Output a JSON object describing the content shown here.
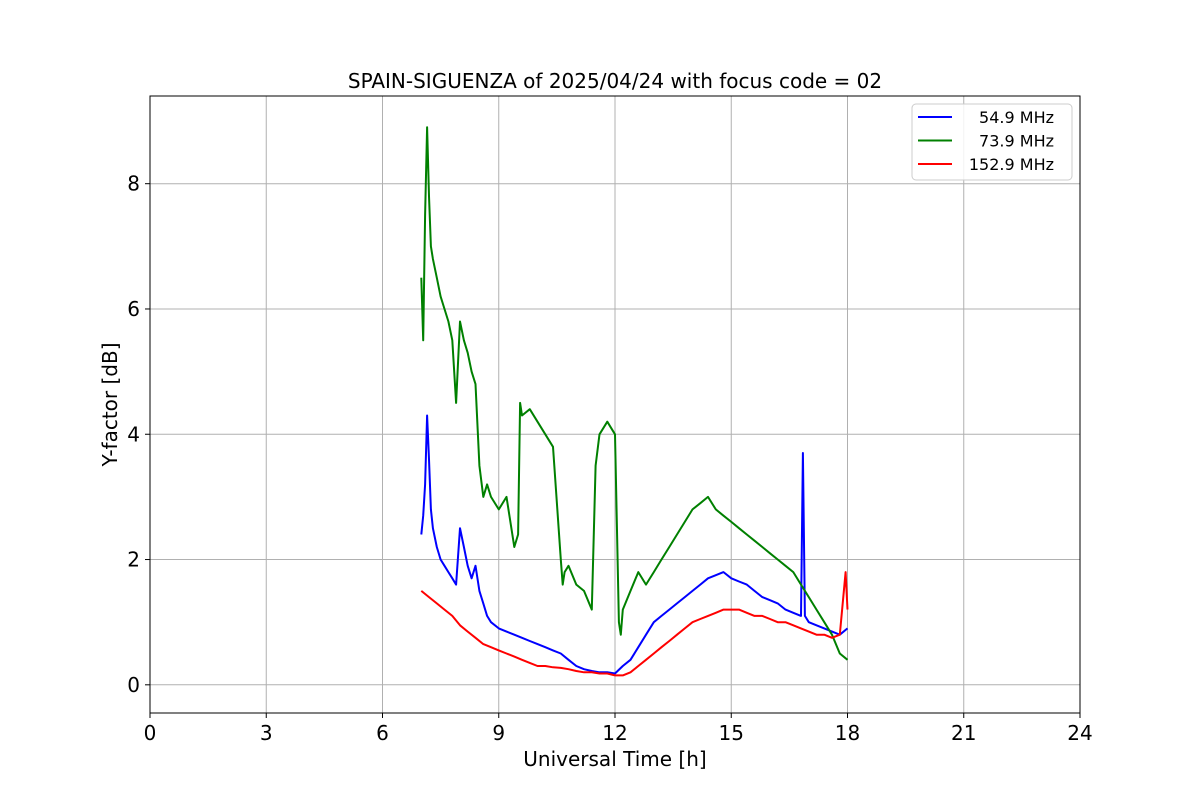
{
  "chart_data": {
    "type": "line",
    "title": "SPAIN-SIGUENZA of 2025/04/24 with focus code = 02",
    "xlabel": "Universal Time [h]",
    "ylabel": "Y-factor [dB]",
    "xlim": [
      0,
      24
    ],
    "ylim": [
      -0.45,
      9.4
    ],
    "xticks": [
      0,
      3,
      6,
      9,
      12,
      15,
      18,
      21,
      24
    ],
    "yticks": [
      0,
      2,
      4,
      6,
      8
    ],
    "grid": true,
    "legend_position": "top-right",
    "series": [
      {
        "name": "54.9 MHz",
        "color": "#0000ff",
        "x": [
          7.0,
          7.05,
          7.1,
          7.15,
          7.2,
          7.25,
          7.3,
          7.4,
          7.5,
          7.6,
          7.7,
          7.8,
          7.9,
          8.0,
          8.1,
          8.2,
          8.3,
          8.4,
          8.5,
          8.6,
          8.7,
          8.8,
          9.0,
          9.2,
          9.4,
          9.6,
          9.8,
          10.0,
          10.2,
          10.4,
          10.6,
          10.8,
          11.0,
          11.2,
          11.4,
          11.6,
          11.8,
          12.0,
          12.2,
          12.4,
          12.6,
          12.8,
          13.0,
          13.2,
          13.4,
          13.6,
          13.8,
          14.0,
          14.2,
          14.4,
          14.6,
          14.8,
          15.0,
          15.2,
          15.4,
          15.6,
          15.8,
          16.0,
          16.2,
          16.4,
          16.6,
          16.8,
          16.85,
          16.9,
          17.0,
          17.2,
          17.4,
          17.6,
          17.8,
          18.0
        ],
        "y": [
          2.4,
          2.7,
          3.2,
          4.3,
          3.6,
          2.8,
          2.5,
          2.2,
          2.0,
          1.9,
          1.8,
          1.7,
          1.6,
          2.5,
          2.2,
          1.9,
          1.7,
          1.9,
          1.5,
          1.3,
          1.1,
          1.0,
          0.9,
          0.85,
          0.8,
          0.75,
          0.7,
          0.65,
          0.6,
          0.55,
          0.5,
          0.4,
          0.3,
          0.25,
          0.22,
          0.2,
          0.2,
          0.18,
          0.3,
          0.4,
          0.6,
          0.8,
          1.0,
          1.1,
          1.2,
          1.3,
          1.4,
          1.5,
          1.6,
          1.7,
          1.75,
          1.8,
          1.7,
          1.65,
          1.6,
          1.5,
          1.4,
          1.35,
          1.3,
          1.2,
          1.15,
          1.1,
          3.7,
          1.1,
          1.0,
          0.95,
          0.9,
          0.85,
          0.8,
          0.9
        ]
      },
      {
        "name": "73.9 MHz",
        "color": "#008000",
        "x": [
          7.0,
          7.05,
          7.1,
          7.15,
          7.2,
          7.25,
          7.3,
          7.4,
          7.5,
          7.6,
          7.7,
          7.8,
          7.9,
          8.0,
          8.1,
          8.2,
          8.3,
          8.4,
          8.5,
          8.6,
          8.7,
          8.8,
          9.0,
          9.2,
          9.4,
          9.5,
          9.55,
          9.6,
          9.8,
          10.0,
          10.2,
          10.4,
          10.6,
          10.65,
          10.7,
          10.8,
          11.0,
          11.2,
          11.4,
          11.5,
          11.6,
          11.8,
          12.0,
          12.1,
          12.15,
          12.2,
          12.4,
          12.6,
          12.8,
          13.0,
          13.2,
          13.4,
          13.6,
          13.8,
          14.0,
          14.2,
          14.4,
          14.6,
          14.8,
          15.0,
          15.2,
          15.4,
          15.6,
          15.8,
          16.0,
          16.2,
          16.4,
          16.6,
          16.8,
          17.0,
          17.2,
          17.4,
          17.6,
          17.8,
          18.0
        ],
        "y": [
          6.5,
          5.5,
          7.5,
          8.9,
          7.8,
          7.0,
          6.8,
          6.5,
          6.2,
          6.0,
          5.8,
          5.5,
          4.5,
          5.8,
          5.5,
          5.3,
          5.0,
          4.8,
          3.5,
          3.0,
          3.2,
          3.0,
          2.8,
          3.0,
          2.2,
          2.4,
          4.5,
          4.3,
          4.4,
          4.2,
          4.0,
          3.8,
          2.0,
          1.6,
          1.8,
          1.9,
          1.6,
          1.5,
          1.2,
          3.5,
          4.0,
          4.2,
          4.0,
          1.0,
          0.8,
          1.2,
          1.5,
          1.8,
          1.6,
          1.8,
          2.0,
          2.2,
          2.4,
          2.6,
          2.8,
          2.9,
          3.0,
          2.8,
          2.7,
          2.6,
          2.5,
          2.4,
          2.3,
          2.2,
          2.1,
          2.0,
          1.9,
          1.8,
          1.6,
          1.4,
          1.2,
          1.0,
          0.8,
          0.5,
          0.4
        ]
      },
      {
        "name": "152.9 MHz",
        "color": "#ff0000",
        "x": [
          7.0,
          7.2,
          7.4,
          7.6,
          7.8,
          8.0,
          8.2,
          8.4,
          8.6,
          8.8,
          9.0,
          9.2,
          9.4,
          9.6,
          9.8,
          10.0,
          10.2,
          10.4,
          10.6,
          10.8,
          11.0,
          11.2,
          11.4,
          11.6,
          11.8,
          12.0,
          12.2,
          12.4,
          12.6,
          12.8,
          13.0,
          13.2,
          13.4,
          13.6,
          13.8,
          14.0,
          14.2,
          14.4,
          14.6,
          14.8,
          15.0,
          15.2,
          15.4,
          15.6,
          15.8,
          16.0,
          16.2,
          16.4,
          16.6,
          16.8,
          17.0,
          17.2,
          17.4,
          17.6,
          17.8,
          17.95,
          18.0
        ],
        "y": [
          1.5,
          1.4,
          1.3,
          1.2,
          1.1,
          0.95,
          0.85,
          0.75,
          0.65,
          0.6,
          0.55,
          0.5,
          0.45,
          0.4,
          0.35,
          0.3,
          0.3,
          0.28,
          0.27,
          0.25,
          0.22,
          0.2,
          0.2,
          0.18,
          0.18,
          0.15,
          0.15,
          0.2,
          0.3,
          0.4,
          0.5,
          0.6,
          0.7,
          0.8,
          0.9,
          1.0,
          1.05,
          1.1,
          1.15,
          1.2,
          1.2,
          1.2,
          1.15,
          1.1,
          1.1,
          1.05,
          1.0,
          1.0,
          0.95,
          0.9,
          0.85,
          0.8,
          0.8,
          0.75,
          0.8,
          1.8,
          1.2
        ]
      }
    ]
  }
}
